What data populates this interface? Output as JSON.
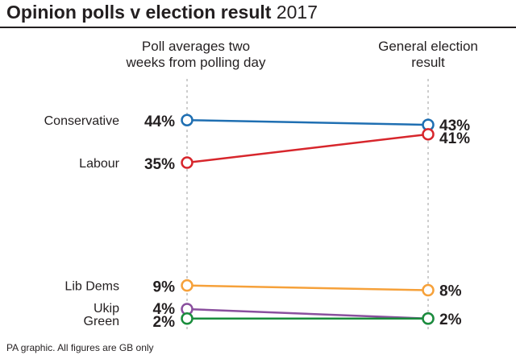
{
  "title": {
    "bold": "Opinion polls v election result",
    "light": "2017"
  },
  "footer": "PA graphic. All figures are GB only",
  "colors": {
    "text": "#231f20",
    "grid": "#bdbdbd"
  },
  "chart_data": {
    "type": "slope",
    "title": "Opinion polls v election result 2017",
    "columns": [
      {
        "lines": [
          "Poll averages two",
          "weeks from polling day"
        ]
      },
      {
        "lines": [
          "General election",
          "result"
        ]
      }
    ],
    "unit": "%",
    "ylim": [
      0,
      50
    ],
    "series": [
      {
        "name": "Conservative",
        "poll": 44,
        "result": 43,
        "color": "#1f6fb2"
      },
      {
        "name": "Labour",
        "poll": 35,
        "result": 41,
        "color": "#d7262c"
      },
      {
        "name": "Lib Dems",
        "poll": 9,
        "result": 8,
        "color": "#f6a13a"
      },
      {
        "name": "Ukip",
        "poll": 4,
        "result": 2,
        "color": "#8a4f9e"
      },
      {
        "name": "Green",
        "poll": 2,
        "result": 2,
        "color": "#1a8d3c"
      }
    ]
  }
}
